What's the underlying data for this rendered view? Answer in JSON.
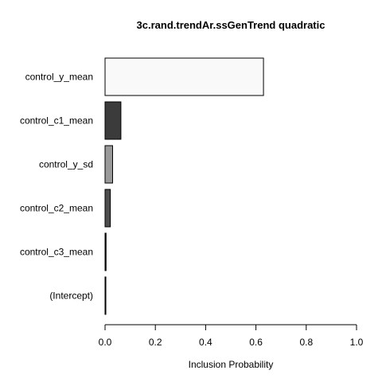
{
  "chart_data": {
    "type": "bar",
    "orientation": "horizontal",
    "title": "3c.rand.trendAr.ssGenTrend quadratic",
    "xlabel": "Inclusion Probability",
    "ylabel": "",
    "xlim": [
      0,
      1
    ],
    "xticks": [
      0,
      0.2,
      0.4,
      0.6,
      0.8,
      1
    ],
    "xtick_labels": [
      "0.0",
      "0.2",
      "0.4",
      "0.6",
      "0.8",
      "1.0"
    ],
    "grid": false,
    "categories": [
      "control_y_mean",
      "control_c1_mean",
      "control_y_sd",
      "control_c2_mean",
      "control_c3_mean",
      "(Intercept)"
    ],
    "values": [
      0.63,
      0.063,
      0.03,
      0.021,
      0.004,
      0.002
    ],
    "colors": [
      "#f9f9f9",
      "#3b3b3b",
      "#9a9a9a",
      "#4d4d4d",
      "#111111",
      "#ffffff"
    ]
  }
}
